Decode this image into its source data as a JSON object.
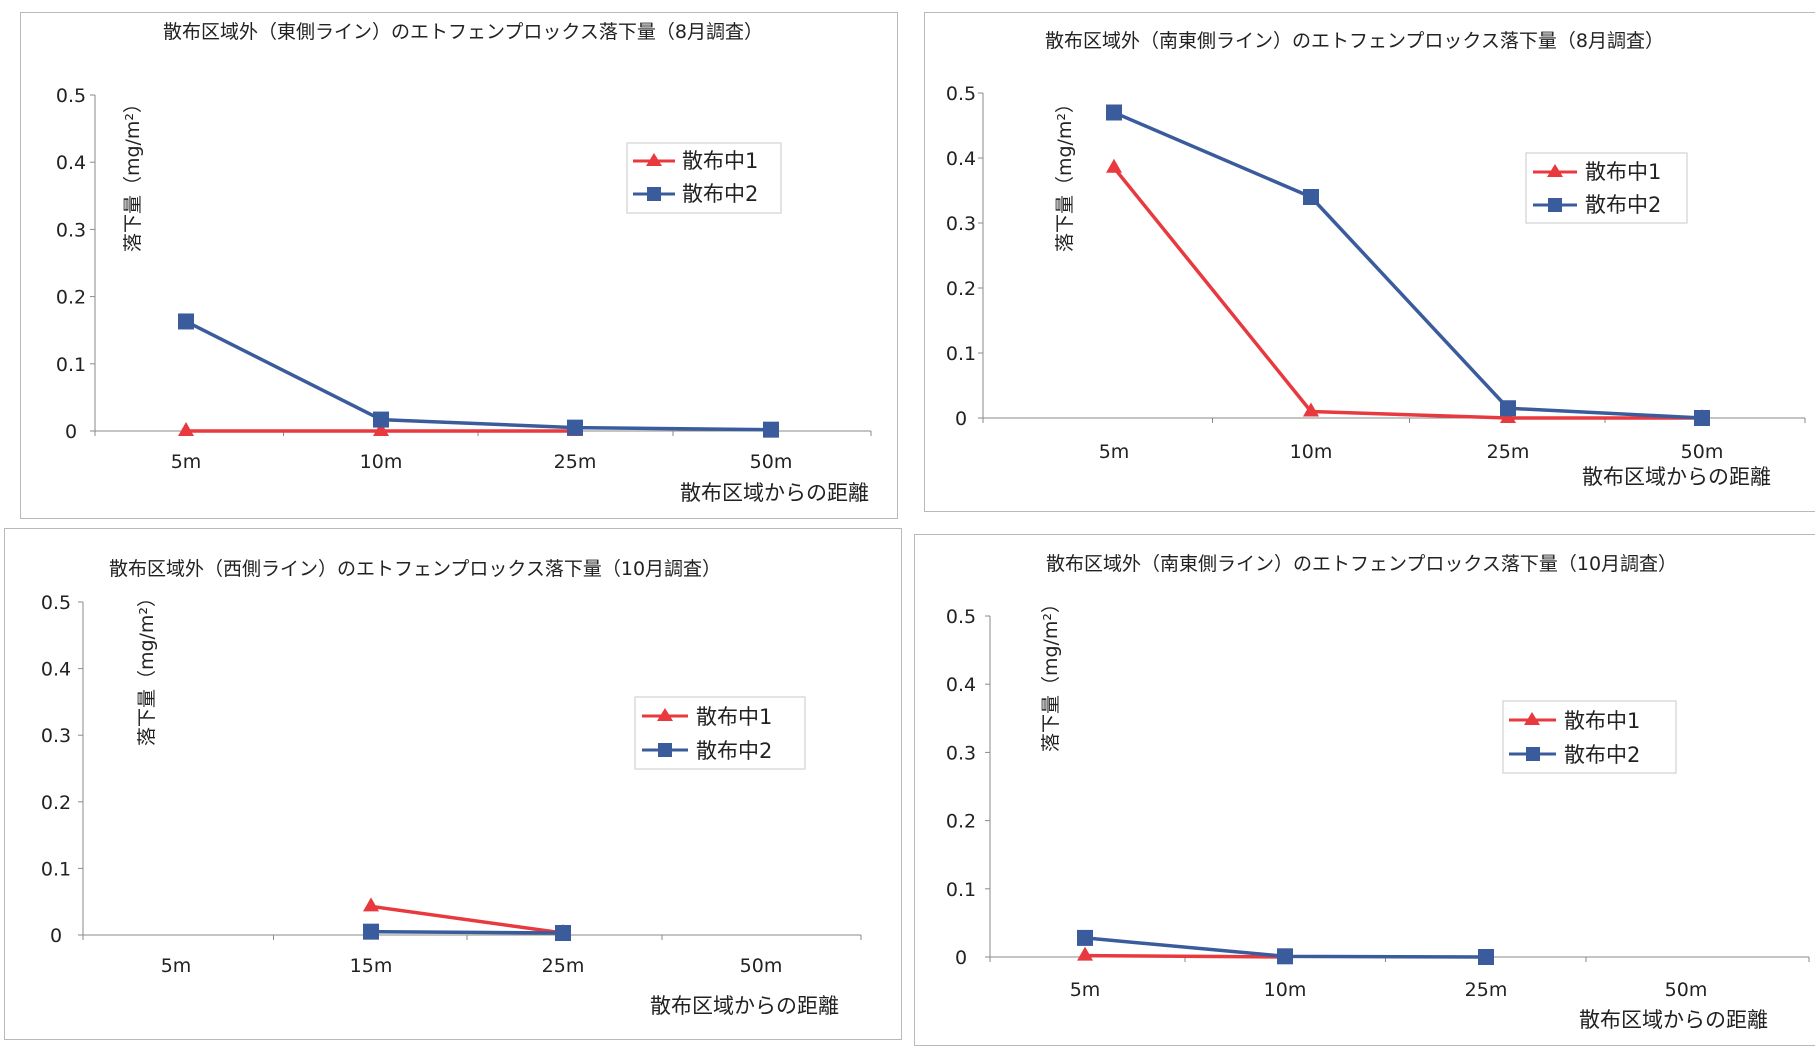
{
  "chart_data": [
    {
      "type": "line",
      "title": "散布区域外（東側ライン）のエトフェンプロックス落下量（8月調査）",
      "xlabel": "散布区域からの距離",
      "ylabel": "落下量（mg/m²）",
      "categories": [
        "5m",
        "10m",
        "25m",
        "50m"
      ],
      "ylim": [
        0,
        0.5
      ],
      "yticks": [
        "0.5",
        "0.4",
        "0.3",
        "0.2",
        "0.1",
        "0"
      ],
      "legend_position": "top-right",
      "grid": false,
      "series": [
        {
          "name": "散布中1",
          "color": "#e8393f",
          "marker": "triangle",
          "values": [
            0.0,
            0.0,
            0.0,
            null
          ]
        },
        {
          "name": "散布中2",
          "color": "#3a5c9c",
          "marker": "square",
          "values": [
            0.163,
            0.017,
            0.005,
            0.002
          ]
        }
      ]
    },
    {
      "type": "line",
      "title": "散布区域外（南東側ライン）のエトフェンプロックス落下量（8月調査）",
      "xlabel": "散布区域からの距離",
      "ylabel": "落下量（mg/m²）",
      "categories": [
        "5m",
        "10m",
        "25m",
        "50m"
      ],
      "ylim": [
        0,
        0.5
      ],
      "yticks": [
        "0.5",
        "0.4",
        "0.3",
        "0.2",
        "0.1",
        "0"
      ],
      "legend_position": "top-right",
      "grid": false,
      "series": [
        {
          "name": "散布中1",
          "color": "#e8393f",
          "marker": "triangle",
          "values": [
            0.385,
            0.01,
            0.0,
            0.0
          ]
        },
        {
          "name": "散布中2",
          "color": "#3a5c9c",
          "marker": "square",
          "values": [
            0.47,
            0.34,
            0.015,
            0.0
          ]
        }
      ]
    },
    {
      "type": "line",
      "title": "散布区域外（西側ライン）のエトフェンプロックス落下量（10月調査）",
      "xlabel": "散布区域からの距離",
      "ylabel": "落下量（mg/m²）",
      "categories": [
        "5m",
        "15m",
        "25m",
        "50m"
      ],
      "ylim": [
        0,
        0.5
      ],
      "yticks": [
        "0.5",
        "0.4",
        "0.3",
        "0.2",
        "0.1",
        "0"
      ],
      "legend_position": "middle-right",
      "grid": false,
      "series": [
        {
          "name": "散布中1",
          "color": "#e8393f",
          "marker": "triangle",
          "values": [
            null,
            0.043,
            0.003,
            null
          ]
        },
        {
          "name": "散布中2",
          "color": "#3a5c9c",
          "marker": "square",
          "values": [
            null,
            0.005,
            0.003,
            null
          ]
        }
      ]
    },
    {
      "type": "line",
      "title": "散布区域外（南東側ライン）のエトフェンプロックス落下量（10月調査）",
      "xlabel": "散布区域からの距離",
      "ylabel": "落下量（mg/m²）",
      "categories": [
        "5m",
        "10m",
        "25m",
        "50m"
      ],
      "ylim": [
        0,
        0.5
      ],
      "yticks": [
        "0.5",
        "0.4",
        "0.3",
        "0.2",
        "0.1",
        "0"
      ],
      "legend_position": "middle-right",
      "grid": false,
      "series": [
        {
          "name": "散布中1",
          "color": "#e8393f",
          "marker": "triangle",
          "values": [
            0.002,
            0.0,
            null,
            null
          ]
        },
        {
          "name": "散布中2",
          "color": "#3a5c9c",
          "marker": "square",
          "values": [
            0.028,
            0.001,
            0.0,
            null
          ]
        }
      ]
    }
  ]
}
